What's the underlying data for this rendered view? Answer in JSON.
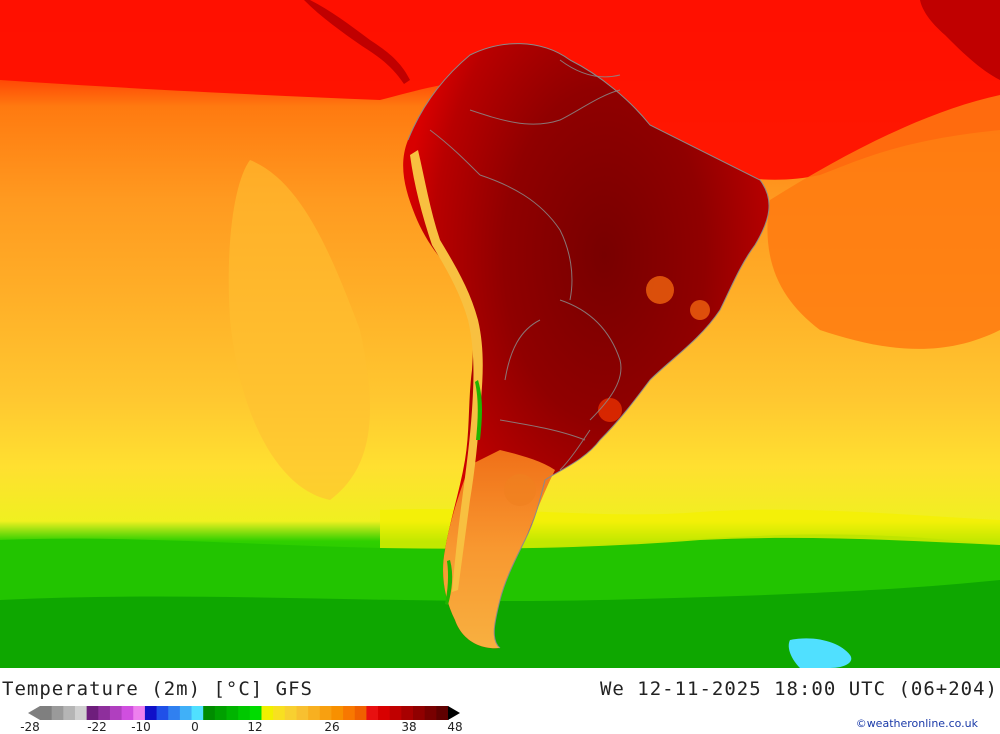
{
  "map": {
    "variable": "Temperature (2m) [°C]",
    "model": "GFS",
    "valid_time": "We 12-11-2025 18:00 UTC (06+204)",
    "credit": "©weatheronline.co.uk",
    "region": "South America"
  },
  "legend": {
    "tick_labels": [
      "-28",
      "-22",
      "-10",
      "0",
      "12",
      "26",
      "38",
      "48"
    ],
    "colors": [
      "#7f7f7f",
      "#9a9a9a",
      "#b5b5b5",
      "#d0d0d0",
      "#6e1e7c",
      "#8e2f9c",
      "#b03fbf",
      "#d04fdf",
      "#ee80ee",
      "#1010c8",
      "#2050e8",
      "#3080f0",
      "#40b0f8",
      "#50e0ff",
      "#008c00",
      "#00a000",
      "#00b400",
      "#00c800",
      "#00dc00",
      "#f0f000",
      "#f8e020",
      "#f8d030",
      "#f8c030",
      "#f8b020",
      "#f8a010",
      "#f89000",
      "#f87800",
      "#f06000",
      "#e81010",
      "#d80000",
      "#c00000",
      "#a80000",
      "#900000",
      "#780000",
      "#600000"
    ]
  }
}
